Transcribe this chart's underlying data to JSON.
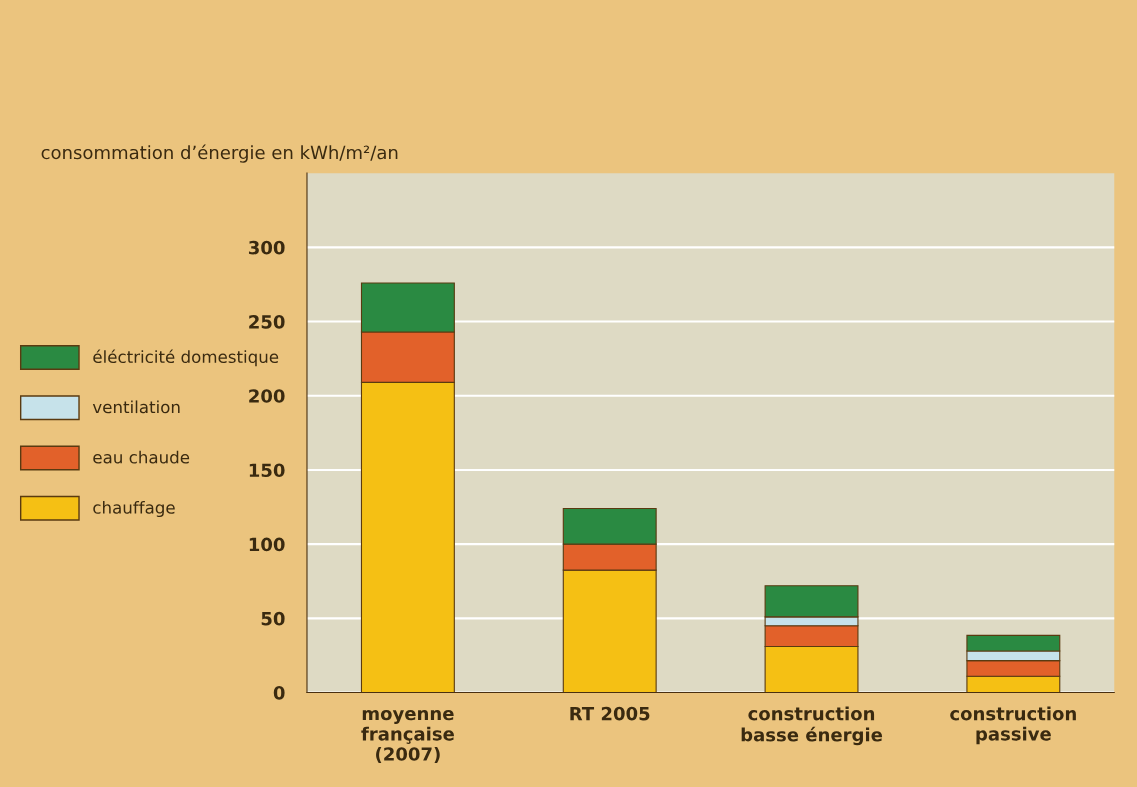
{
  "chart_data": {
    "type": "bar",
    "stacked": true,
    "ylabel": "consommation d’énergie en kWh/m²/an",
    "categories": [
      "moyenne\nfrançaise\n(2007)",
      "RT 2005",
      "construction\nbasse énergie",
      "construction\npassive"
    ],
    "series": [
      {
        "name": "chauffage",
        "color": "#f5c014",
        "values": [
          209,
          82.5,
          31,
          11
        ]
      },
      {
        "name": "eau chaude",
        "color": "#e2612a",
        "values": [
          34,
          17.5,
          14,
          10.5
        ]
      },
      {
        "name": "ventilation",
        "color": "#c6e2ea",
        "values": [
          null,
          null,
          6,
          6.5
        ]
      },
      {
        "name": "éléctricité domestique",
        "color": "#2a8a42",
        "values": [
          33,
          24,
          21,
          10.5
        ]
      }
    ],
    "ylim": [
      0,
      350
    ],
    "yticks": [
      0,
      50,
      100,
      150,
      200,
      250,
      300
    ],
    "grid": "y",
    "legend": "left"
  }
}
